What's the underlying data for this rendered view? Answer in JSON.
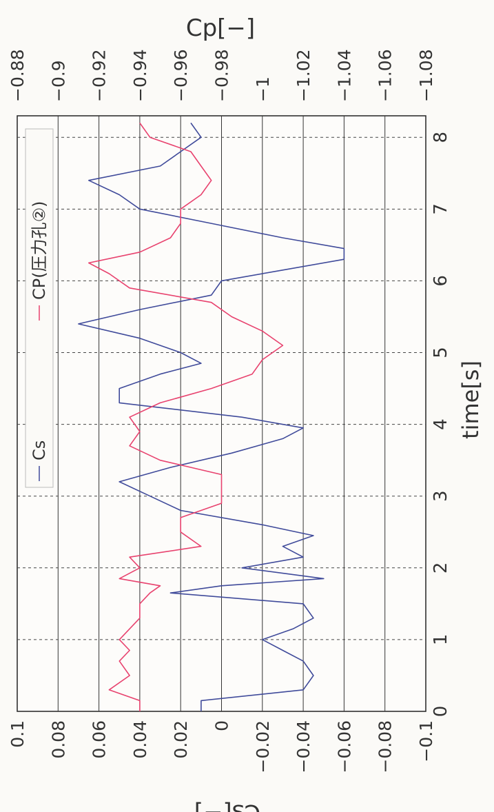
{
  "chart_data": {
    "type": "line",
    "orientation_note": "figure printed rotated 90 degrees clockwise: time axis runs along the page bottom, Cs axis along the page left, Cp axis along the page top",
    "xlabel": "time[s]",
    "y_left_label": "Cs[−]",
    "y_right_label": "Cp[−]",
    "xlim": [
      0,
      8.3
    ],
    "ylim_left": [
      -0.1,
      0.1
    ],
    "ylim_right": [
      -1.08,
      -0.88
    ],
    "x_ticks": [
      0,
      1,
      2,
      3,
      4,
      5,
      6,
      7,
      8
    ],
    "y_left_ticks": [
      0.1,
      0.08,
      0.06,
      0.04,
      0.02,
      0,
      -0.02,
      -0.04,
      -0.06,
      -0.08,
      -0.1
    ],
    "y_right_ticks": [
      -0.88,
      -0.9,
      -0.92,
      -0.94,
      -0.96,
      -0.98,
      -1,
      -1.02,
      -1.04,
      -1.06,
      -1.08
    ],
    "y_left_tick_labels": [
      "0.1",
      "0.08",
      "0.06",
      "0.04",
      "0.02",
      "0",
      "−0.02",
      "−0.04",
      "−0.06",
      "−0.08",
      "−0.1"
    ],
    "y_right_tick_labels": [
      "−0.88",
      "−0.9",
      "−0.92",
      "−0.94",
      "−0.96",
      "−0.98",
      "−1",
      "−1.02",
      "−1.04",
      "−1.06",
      "−1.08"
    ],
    "grid": true,
    "legend_position": "top-left",
    "series": [
      {
        "name": "Cs",
        "axis": "left",
        "color": "#3f4a9a",
        "x": [
          0,
          0.15,
          0.3,
          0.5,
          0.7,
          0.85,
          1.0,
          1.15,
          1.3,
          1.5,
          1.65,
          1.75,
          1.85,
          2.0,
          2.15,
          2.3,
          2.45,
          2.6,
          2.8,
          3.0,
          3.2,
          3.4,
          3.6,
          3.8,
          3.95,
          4.1,
          4.3,
          4.5,
          4.7,
          4.85,
          5.0,
          5.2,
          5.4,
          5.6,
          5.8,
          6.0,
          6.15,
          6.3,
          6.45,
          6.6,
          6.8,
          7.0,
          7.2,
          7.4,
          7.6,
          7.8,
          8.0,
          8.2
        ],
        "y": [
          0.01,
          0.01,
          -0.04,
          -0.045,
          -0.04,
          -0.03,
          -0.02,
          -0.035,
          -0.045,
          -0.04,
          0.025,
          0.0,
          -0.05,
          -0.01,
          -0.04,
          -0.03,
          -0.045,
          -0.02,
          0.02,
          0.035,
          0.05,
          0.025,
          -0.005,
          -0.03,
          -0.04,
          -0.01,
          0.05,
          0.05,
          0.03,
          0.01,
          0.02,
          0.04,
          0.07,
          0.04,
          0.005,
          0.0,
          -0.03,
          -0.06,
          -0.06,
          -0.03,
          0.005,
          0.04,
          0.05,
          0.065,
          0.03,
          0.02,
          0.01,
          0.015
        ]
      },
      {
        "name": "CP(圧力孔②)",
        "axis": "right",
        "color": "#e8426e",
        "x": [
          0,
          0.15,
          0.3,
          0.5,
          0.7,
          0.85,
          1.0,
          1.15,
          1.3,
          1.5,
          1.65,
          1.75,
          1.85,
          2.0,
          2.15,
          2.3,
          2.5,
          2.7,
          2.9,
          3.1,
          3.3,
          3.5,
          3.7,
          3.9,
          4.1,
          4.3,
          4.5,
          4.7,
          4.9,
          5.1,
          5.3,
          5.5,
          5.7,
          5.9,
          6.1,
          6.25,
          6.4,
          6.6,
          6.8,
          7.0,
          7.2,
          7.4,
          7.6,
          7.8,
          8.0,
          8.2
        ],
        "y": [
          -0.94,
          -0.94,
          -0.925,
          -0.935,
          -0.93,
          -0.935,
          -0.93,
          -0.935,
          -0.94,
          -0.94,
          -0.945,
          -0.95,
          -0.93,
          -0.94,
          -0.935,
          -0.97,
          -0.96,
          -0.96,
          -0.98,
          -0.98,
          -0.98,
          -0.95,
          -0.935,
          -0.94,
          -0.935,
          -0.95,
          -0.975,
          -0.995,
          -1.0,
          -1.01,
          -1.0,
          -0.985,
          -0.975,
          -0.935,
          -0.925,
          -0.915,
          -0.94,
          -0.955,
          -0.96,
          -0.96,
          -0.97,
          -0.975,
          -0.97,
          -0.965,
          -0.945,
          -0.94
        ]
      }
    ]
  }
}
